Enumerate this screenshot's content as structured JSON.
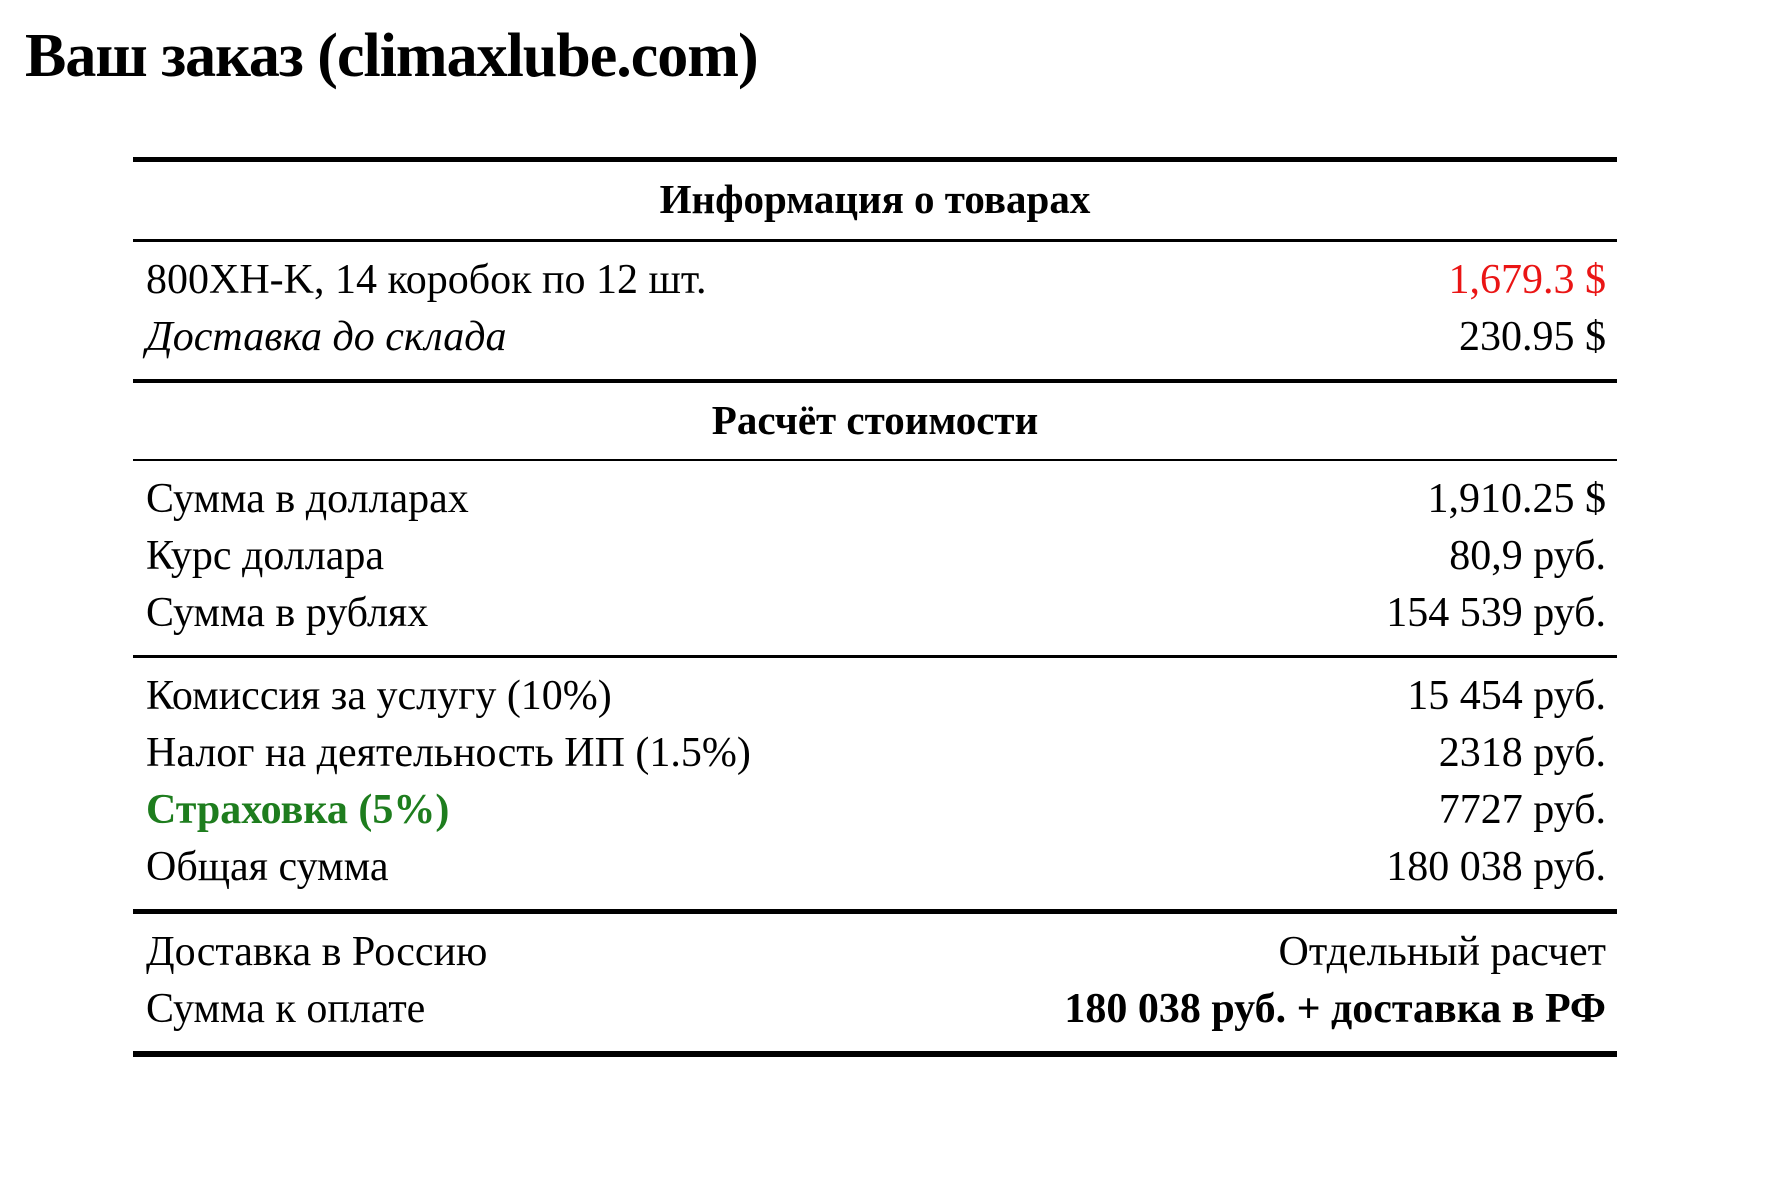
{
  "page": {
    "title": "Ваш заказ (climaxlube.com)"
  },
  "colors": {
    "price_alert_red": "#ea1515",
    "insurance_green": "#1e7d1e",
    "text": "#000000",
    "background": "#ffffff"
  },
  "table": {
    "products": {
      "title": "Информация о товарах",
      "rows": [
        {
          "label": "800XH-K, 14 коробок по 12 шт.",
          "value": "1,679.3 $"
        },
        {
          "label": "Доставка до склада",
          "value": "230.95 $"
        }
      ]
    },
    "calc": {
      "title": "Расчёт стоимости",
      "subtotal_rows": [
        {
          "label": "Сумма в долларах",
          "value": "1,910.25 $"
        },
        {
          "label": "Курс доллара",
          "value": "80,9 руб."
        },
        {
          "label": "Сумма в рублях",
          "value": "154 539 руб."
        }
      ],
      "fee_rows": [
        {
          "label": "Комиссия за услугу (10%)",
          "value": "15 454 руб."
        },
        {
          "label": "Налог на деятельность ИП (1.5%)",
          "value": "2318 руб."
        },
        {
          "label": "Страховка (5%)",
          "value": "7727 руб."
        },
        {
          "label": "Общая сумма",
          "value": "180 038 руб."
        }
      ],
      "final_rows": [
        {
          "label": "Доставка в Россию",
          "value": "Отдельный расчет"
        },
        {
          "label": "Сумма к оплате",
          "value": "180 038 руб. + доставка в РФ"
        }
      ]
    }
  }
}
